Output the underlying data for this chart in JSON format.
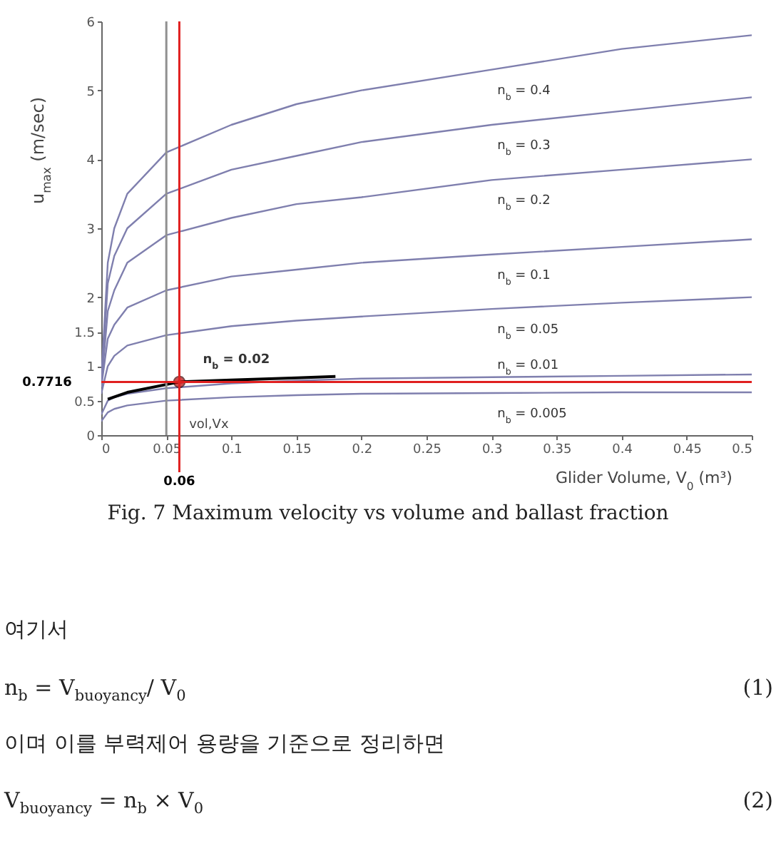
{
  "chart_data": {
    "type": "line",
    "xlabel": "Glider Volume, V$_{0}$ (m³)",
    "ylabel": "u$_{max}$ (m/sec)",
    "x": [
      0,
      0.005,
      0.01,
      0.02,
      0.05,
      0.1,
      0.15,
      0.2,
      0.3,
      0.4,
      0.5
    ],
    "xlim": [
      0,
      0.5
    ],
    "xticks": [
      0,
      0.05,
      0.1,
      0.15,
      0.2,
      0.25,
      0.3,
      0.35,
      0.4,
      0.45,
      0.5
    ],
    "ylim": [
      0,
      6
    ],
    "yticks": [
      0,
      0.5,
      1,
      1.5,
      2,
      3,
      4,
      5,
      6
    ],
    "grid": false,
    "series": [
      {
        "name": "n$_{b}$ = 0.4",
        "color": "#7f7fae",
        "values": [
          0.8,
          2.5,
          3.0,
          3.5,
          4.1,
          4.5,
          4.8,
          5.0,
          5.3,
          5.6,
          5.8
        ]
      },
      {
        "name": "n$_{b}$ = 0.3",
        "color": "#7f7fae",
        "values": [
          0.7,
          2.2,
          2.6,
          3.0,
          3.5,
          3.85,
          4.05,
          4.25,
          4.5,
          4.7,
          4.9
        ]
      },
      {
        "name": "n$_{b}$ = 0.2",
        "color": "#7f7fae",
        "values": [
          0.7,
          1.8,
          2.1,
          2.5,
          2.9,
          3.15,
          3.35,
          3.45,
          3.7,
          3.85,
          4.0
        ]
      },
      {
        "name": "n$_{b}$ = 0.1",
        "color": "#7f7fae",
        "values": [
          0.7,
          1.4,
          1.6,
          1.85,
          2.1,
          2.3,
          2.4,
          2.5,
          2.62,
          2.73,
          2.84
        ]
      },
      {
        "name": "n$_{b}$ = 0.05",
        "color": "#7f7fae",
        "values": [
          0.6,
          1.0,
          1.15,
          1.3,
          1.45,
          1.58,
          1.66,
          1.72,
          1.83,
          1.92,
          2.0
        ]
      },
      {
        "name": "n$_{b}$ = 0.01",
        "color": "#7f7fae",
        "values": [
          0.3,
          0.5,
          0.55,
          0.6,
          0.68,
          0.75,
          0.79,
          0.82,
          0.84,
          0.86,
          0.88
        ]
      },
      {
        "name": "n$_{b}$ = 0.005",
        "color": "#7f7fae",
        "values": [
          0.2,
          0.33,
          0.38,
          0.43,
          0.5,
          0.55,
          0.58,
          0.6,
          0.61,
          0.62,
          0.62
        ]
      },
      {
        "name": "n$_{b}$ = 0.02",
        "color": "#000000",
        "x": [
          0.005,
          0.02,
          0.06,
          0.1,
          0.15,
          0.18
        ],
        "values": [
          0.52,
          0.62,
          0.7716,
          0.8,
          0.83,
          0.85
        ]
      },
      {
        "type": "scatter",
        "color": "#c00000",
        "marker": "circle",
        "x": [
          0.06
        ],
        "values": [
          0.7716
        ]
      }
    ],
    "ref_lines": [
      {
        "axis": "x",
        "value": 0.06,
        "label": "0.06",
        "color": "#e02020"
      },
      {
        "axis": "x",
        "value": 0.05,
        "label": "vol,Vx",
        "color": "#909090"
      },
      {
        "axis": "y",
        "value": 0.7716,
        "label": "0.7716",
        "color": "#e02020"
      }
    ],
    "annotations": [
      "Fig. 7 Maximum velocity vs volume and ballast fraction",
      "여기서",
      "n$_{b}$ = V$_{buoyancy}$/ V$_{0}$",
      "(1)",
      "이며 이를 부력제어 용량을 기준으로 정리하면",
      "V$_{buoyancy}$ = n$_{b}$ × V$_{0}$",
      "(2)"
    ]
  }
}
